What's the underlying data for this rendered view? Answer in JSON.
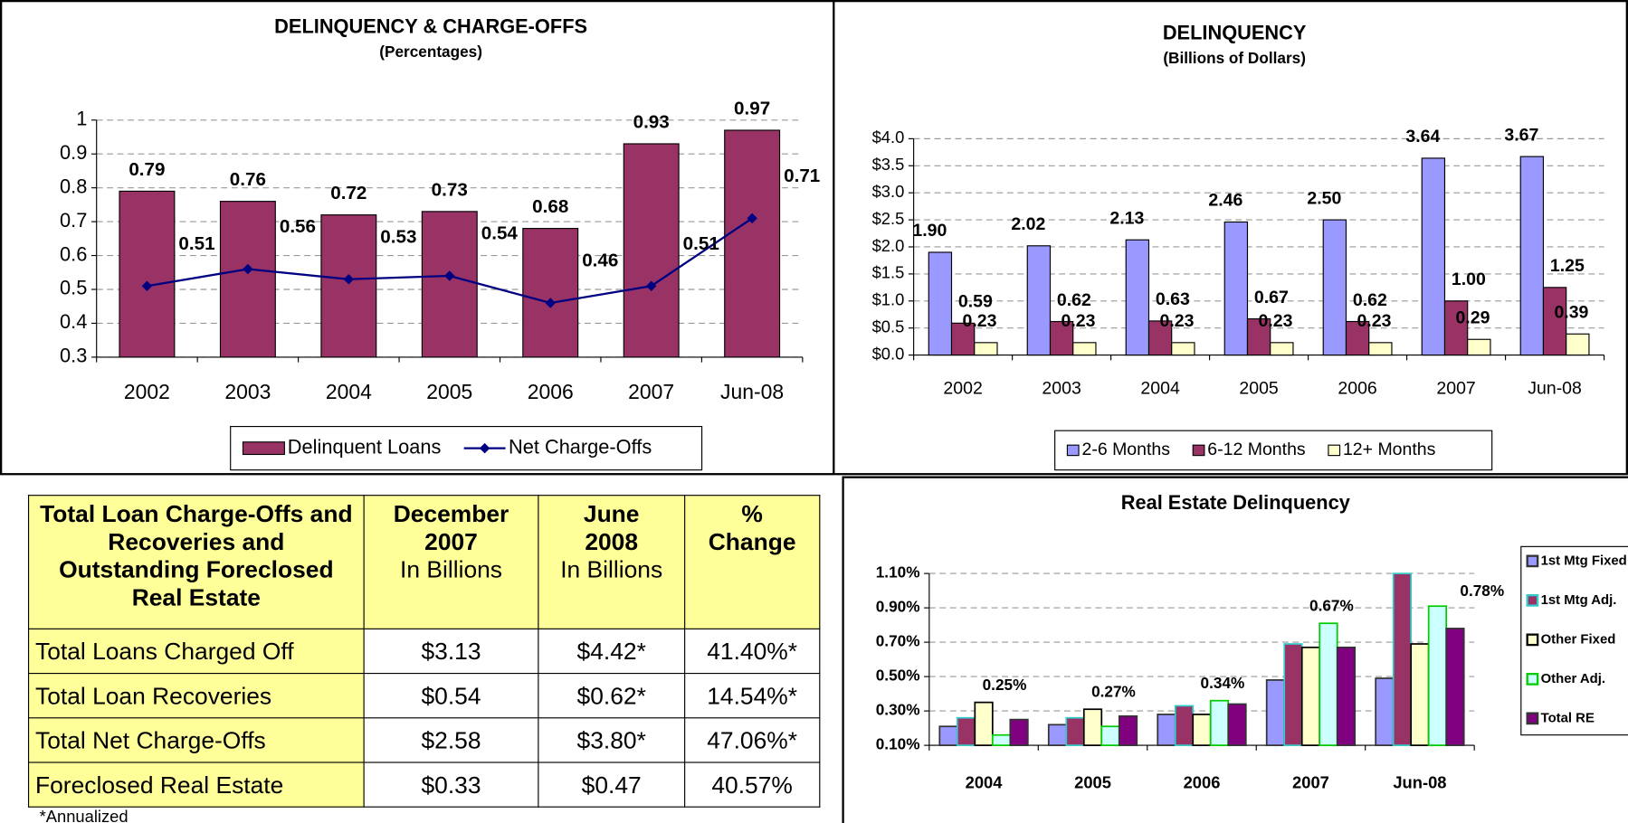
{
  "chart_data": [
    {
      "type": "bar",
      "title": "DELINQUENCY & CHARGE-OFFS",
      "subtitle": "(Percentages)",
      "categories": [
        "2002",
        "2003",
        "2004",
        "2005",
        "2006",
        "2007",
        "Jun-08"
      ],
      "series": [
        {
          "name": "Delinquent Loans",
          "type": "bar",
          "color": "#993366",
          "values": [
            0.79,
            0.76,
            0.72,
            0.73,
            0.68,
            0.93,
            0.97
          ]
        },
        {
          "name": "Net Charge-Offs",
          "type": "line",
          "color": "#000080",
          "values": [
            0.51,
            0.56,
            0.53,
            0.54,
            0.46,
            0.51,
            0.71
          ]
        }
      ],
      "ylim": [
        0.3,
        1
      ],
      "yticks": [
        0.3,
        0.4,
        0.5,
        0.6,
        0.7,
        0.8,
        0.9,
        1
      ],
      "grid": true,
      "data_labels": true,
      "legend": "bottom"
    },
    {
      "type": "bar",
      "title": "DELINQUENCY",
      "subtitle": "(Billions of Dollars)",
      "categories": [
        "2002",
        "2003",
        "2004",
        "2005",
        "2006",
        "2007",
        "Jun-08"
      ],
      "series": [
        {
          "name": "2-6 Months",
          "color": "#9999ff",
          "values": [
            1.9,
            2.02,
            2.13,
            2.46,
            2.5,
            3.64,
            3.67
          ],
          "value_labels": [
            "1.90",
            "2.02",
            "2.13",
            "2.46",
            "2.50",
            "3.64",
            "3.67"
          ]
        },
        {
          "name": "6-12 Months",
          "color": "#993366",
          "values": [
            0.59,
            0.62,
            0.63,
            0.67,
            0.62,
            1.0,
            1.25
          ],
          "value_labels": [
            "0.59",
            "0.62",
            "0.63",
            "0.67",
            "0.62",
            "1.00",
            "1.25"
          ]
        },
        {
          "name": "12+ Months",
          "color": "#ffffcc",
          "values": [
            0.23,
            0.23,
            0.23,
            0.23,
            0.23,
            0.29,
            0.39
          ],
          "value_labels": [
            "0.23",
            "0.23",
            "0.23",
            "0.23",
            "0.23",
            "0.29",
            "0.39"
          ]
        }
      ],
      "ylim": [
        0,
        4
      ],
      "yticks": [
        {
          "value": 0,
          "label": "$0.0"
        },
        {
          "value": 0.5,
          "label": "$0.5"
        },
        {
          "value": 1,
          "label": "$1.0"
        },
        {
          "value": 1.5,
          "label": "$1.5"
        },
        {
          "value": 2,
          "label": "$2.0"
        },
        {
          "value": 2.5,
          "label": "$2.5"
        },
        {
          "value": 3,
          "label": "$3.0"
        },
        {
          "value": 3.5,
          "label": "$3.5"
        },
        {
          "value": 4,
          "label": "$4.0"
        }
      ],
      "grid": true,
      "legend": "bottom"
    },
    {
      "type": "bar",
      "title": "Real Estate Delinquency",
      "categories": [
        "2004",
        "2005",
        "2006",
        "2007",
        "Jun-08"
      ],
      "series": [
        {
          "name": "1st Mtg Fixed",
          "color": "#9999ff",
          "edgecolor": "#333333",
          "values": [
            0.21,
            0.22,
            0.28,
            0.48,
            0.49
          ]
        },
        {
          "name": "1st Mtg Adj.",
          "color": "#993366",
          "edgecolor": "#33cccc",
          "values": [
            0.26,
            0.26,
            0.33,
            0.69,
            1.1
          ]
        },
        {
          "name": "Other Fixed",
          "color": "#ffffcc",
          "edgecolor": "#000000",
          "values": [
            0.35,
            0.31,
            0.28,
            0.67,
            0.69
          ]
        },
        {
          "name": "Other Adj.",
          "color": "#ccffff",
          "edgecolor": "#00cc00",
          "values": [
            0.16,
            0.21,
            0.36,
            0.81,
            0.91
          ]
        },
        {
          "name": "Total RE",
          "color": "#800080",
          "edgecolor": "#333333",
          "values": [
            0.25,
            0.27,
            0.34,
            0.67,
            0.78
          ],
          "value_labels": [
            "0.25%",
            "0.27%",
            "0.34%",
            "0.67%",
            "0.78%"
          ]
        }
      ],
      "ylim": [
        0.1,
        1.1
      ],
      "yticks": [
        {
          "value": 0.1,
          "label": "0.10%"
        },
        {
          "value": 0.3,
          "label": "0.30%"
        },
        {
          "value": 0.5,
          "label": "0.50%"
        },
        {
          "value": 0.7,
          "label": "0.70%"
        },
        {
          "value": 0.9,
          "label": "0.90%"
        },
        {
          "value": 1.1,
          "label": "1.10%"
        }
      ],
      "grid": true,
      "legend": "right"
    }
  ],
  "table": {
    "header": [
      {
        "title": "Total Loan Charge-Offs and Recoveries and Outstanding Foreclosed Real Estate"
      },
      {
        "title": "December 2007",
        "unit": "In Billions"
      },
      {
        "title": "June 2008",
        "unit": "In Billions"
      },
      {
        "title": "% Change"
      }
    ],
    "rows": [
      [
        "Total Loans Charged Off",
        "$3.13",
        "$4.42*",
        "41.40%*"
      ],
      [
        "Total Loan Recoveries",
        "$0.54",
        "$0.62*",
        "14.54%*"
      ],
      [
        "Total Net Charge-Offs",
        "$2.58",
        "$3.80*",
        "47.06%*"
      ],
      [
        "Foreclosed Real Estate",
        "$0.33",
        "$0.47",
        "40.57%"
      ]
    ],
    "footnote": "*Annualized"
  }
}
